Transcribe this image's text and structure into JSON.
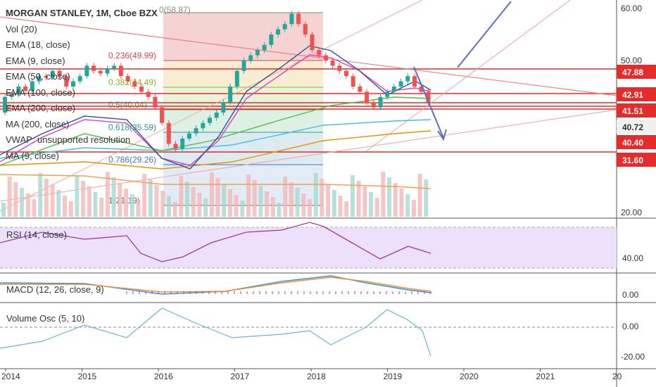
{
  "legend": {
    "title": "MORGAN STANLEY, 1M, Cboe BZX",
    "items": [
      "Vol (20)",
      "EMA (18, close)",
      "EMA (9, close)",
      "EMA (50, close)",
      "EMA (100, close)",
      "EMA (200, close)",
      "MA (200, close)",
      "VWAP: unsupported resolution",
      "MA (9, close)"
    ]
  },
  "panes": {
    "rsi_label": "RSI (14, close)",
    "macd_label": "MACD (12, 26, close, 9)",
    "volosc_label": "Volume Osc (5, 10)"
  },
  "chart_data": {
    "type": "candlestick",
    "symbol": "MORGAN STANLEY",
    "interval": "1M",
    "exchange": "Cboe BZX",
    "x_ticks": [
      "2014",
      "2015",
      "2016",
      "2017",
      "2018",
      "2019",
      "2020",
      "2021",
      "20"
    ],
    "price_axis_ticks": [
      "60.00",
      "50.00",
      "20.00"
    ],
    "price_labels": [
      {
        "text": "47.88",
        "color": "#e62b2b"
      },
      {
        "text": "42.91",
        "color": "#e62b2b"
      },
      {
        "text": "41.51",
        "color": "#e62b2b"
      },
      {
        "text": "40.72",
        "color": "#f0f0f0"
      },
      {
        "text": "40.40",
        "color": "#e62b2b"
      },
      {
        "text": "31.60",
        "color": "#e62b2b"
      }
    ],
    "fib_levels": [
      {
        "ratio": "0.236",
        "label": "0.236(49.99)",
        "color": "#e04848"
      },
      {
        "ratio": "0.382",
        "label": "0.382(44.49)",
        "color": "#8ab820"
      },
      {
        "ratio": "0.5",
        "label": "0.5(40.04)",
        "color": "#3aa860"
      },
      {
        "ratio": "0.618",
        "label": "0.618(35.59)",
        "color": "#2a9a88"
      },
      {
        "ratio": "0.786",
        "label": "0.786(29.26)",
        "color": "#3a78c8"
      },
      {
        "ratio": "1",
        "label": "1(21.19)",
        "color": "#666666"
      }
    ],
    "fib_top_label": "0(58.87)",
    "rsi_ticks": [
      "40.00"
    ],
    "macd_ticks": [
      "0.00"
    ],
    "volosc_ticks": [
      "0.00",
      "-20.00"
    ],
    "colors": {
      "up": "#26a69a",
      "down": "#ef5350",
      "accent_red": "#e62b2b",
      "arrow": "#5a6fbf"
    }
  }
}
